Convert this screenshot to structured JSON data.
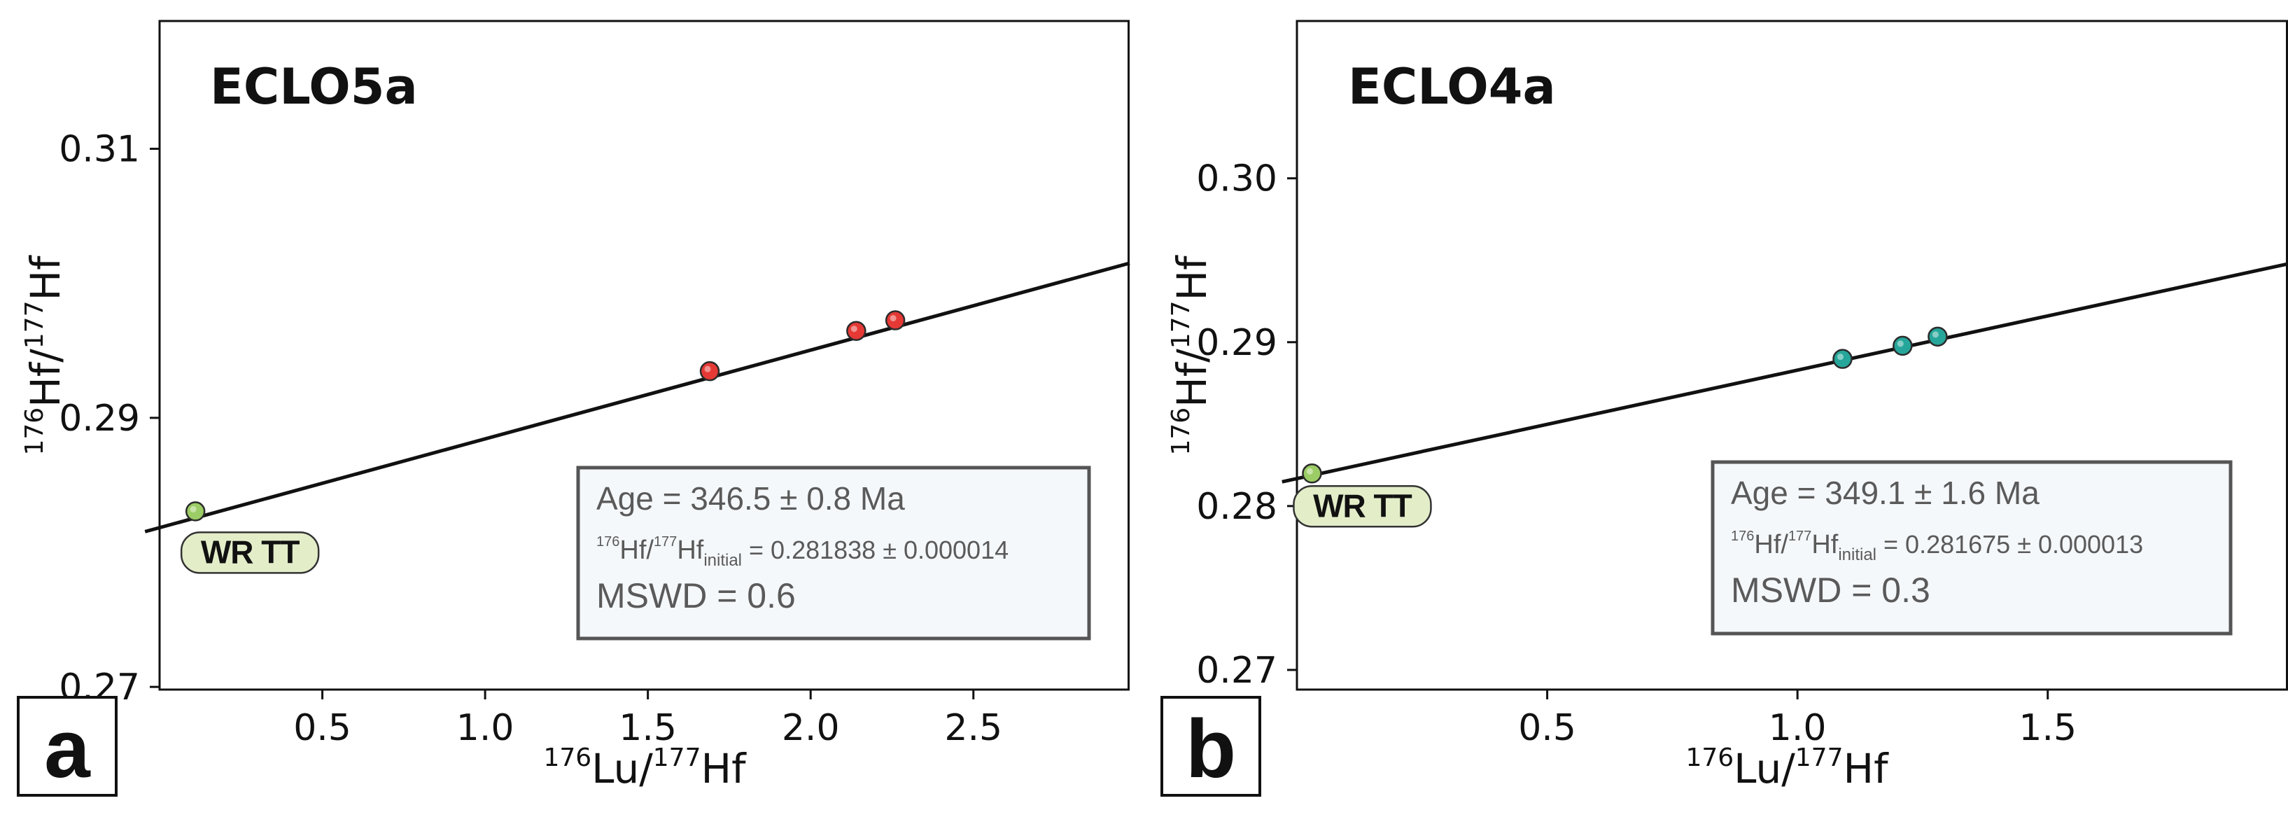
{
  "chart_data": [
    {
      "type": "scatter",
      "panel": "a",
      "title": "ECLO5a",
      "xlabel": {
        "sup1": "176",
        "part1": "Lu/",
        "sup2": "177",
        "part2": "Hf"
      },
      "ylabel": {
        "sup1": "176",
        "part1": "Hf/",
        "sup2": "177",
        "part2": "Hf"
      },
      "xlim": [
        0.0,
        2.98
      ],
      "ylim": [
        0.2698,
        0.3195
      ],
      "xticks": [
        0.5,
        1.0,
        1.5,
        2.0,
        2.5
      ],
      "xtick_labels": [
        "0.5",
        "1.0",
        "1.5",
        "2.0",
        "2.5"
      ],
      "yticks": [
        0.27,
        0.29,
        0.31
      ],
      "ytick_labels": [
        "0.27",
        "0.29",
        "0.31"
      ],
      "points": [
        {
          "x": 0.11,
          "y": 0.28305,
          "color": "#9ccc65",
          "group": "WR TT"
        },
        {
          "x": 1.69,
          "y": 0.29347,
          "color": "#e53935"
        },
        {
          "x": 2.14,
          "y": 0.29646,
          "color": "#e53935"
        },
        {
          "x": 2.26,
          "y": 0.29725,
          "color": "#e53935"
        }
      ],
      "isochron": {
        "x0": 0.0,
        "y0": 0.281838,
        "x1": 2.98,
        "y1": 0.3015
      },
      "point_label": "WR TT",
      "annotation": {
        "age": "Age = 346.5 ± 0.8 Ma",
        "initial_a": "176",
        "initial_b": "Hf/",
        "initial_c": "177",
        "initial_d": "Hf",
        "initial_sub": "initial",
        "initial_value": " = 0.281838 ± 0.000014",
        "mswd": "MSWD = 0.6"
      },
      "colors": {
        "sample": "#e53935",
        "whole_rock": "#9ccc65",
        "box_fill": "#f5f8fb",
        "box_stroke": "#555555"
      }
    },
    {
      "type": "scatter",
      "panel": "b",
      "title": "ECLO4a",
      "xlabel": {
        "sup1": "176",
        "part1": "Lu/",
        "sup2": "177",
        "part2": "Hf"
      },
      "ylabel": {
        "sup1": "176",
        "part1": "Hf/",
        "sup2": "177",
        "part2": "Hf"
      },
      "xlim": [
        0.0,
        1.98
      ],
      "ylim": [
        0.2688,
        0.3096
      ],
      "xticks": [
        0.5,
        1.0,
        1.5
      ],
      "xtick_labels": [
        "0.5",
        "1.0",
        "1.5"
      ],
      "yticks": [
        0.27,
        0.28,
        0.29,
        0.3
      ],
      "ytick_labels": [
        "0.27",
        "0.28",
        "0.29",
        "0.30"
      ],
      "points": [
        {
          "x": 0.03,
          "y": 0.28199,
          "color": "#9ccc65",
          "group": "WR TT"
        },
        {
          "x": 1.09,
          "y": 0.28898,
          "color": "#26a69a"
        },
        {
          "x": 1.21,
          "y": 0.28978,
          "color": "#26a69a"
        },
        {
          "x": 1.28,
          "y": 0.29034,
          "color": "#26a69a"
        }
      ],
      "isochron": {
        "x0": 0.0,
        "y0": 0.281675,
        "x1": 1.98,
        "y1": 0.29478
      },
      "point_label": "WR TT",
      "annotation": {
        "age": "Age = 349.1 ± 1.6 Ma",
        "initial_a": "176",
        "initial_b": "Hf/",
        "initial_c": "177",
        "initial_d": "Hf",
        "initial_sub": "initial",
        "initial_value": " = 0.281675 ± 0.000013",
        "mswd": "MSWD = 0.3"
      },
      "colors": {
        "sample": "#26a69a",
        "whole_rock": "#9ccc65",
        "box_fill": "#f5f8fb",
        "box_stroke": "#555555"
      }
    }
  ]
}
